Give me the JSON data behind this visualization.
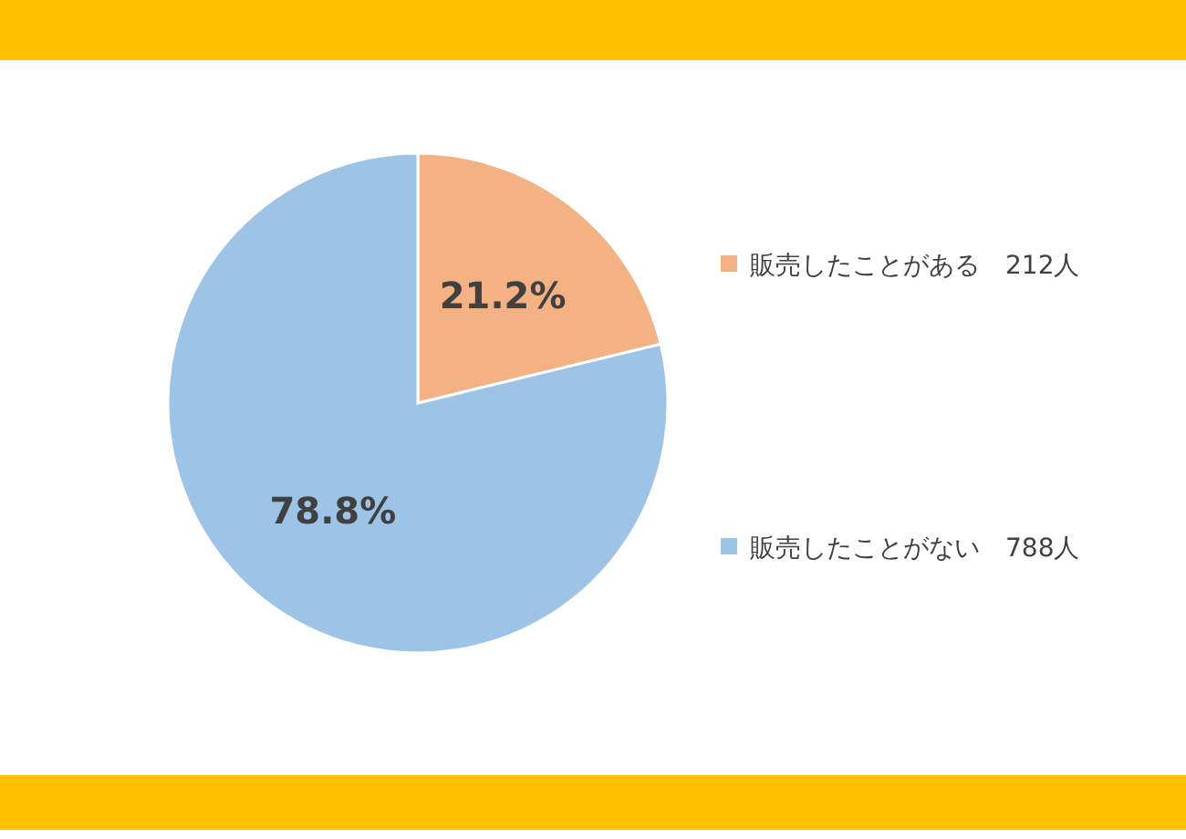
{
  "chart_data": {
    "type": "pie",
    "categories": [
      "販売したことがある　212人",
      "販売したことがない　788人"
    ],
    "values": [
      21.2,
      78.8
    ],
    "colors": [
      "#f4b183",
      "#9dc3e6"
    ],
    "value_labels": [
      "21.2%",
      "78.8%"
    ],
    "legend": "right"
  }
}
